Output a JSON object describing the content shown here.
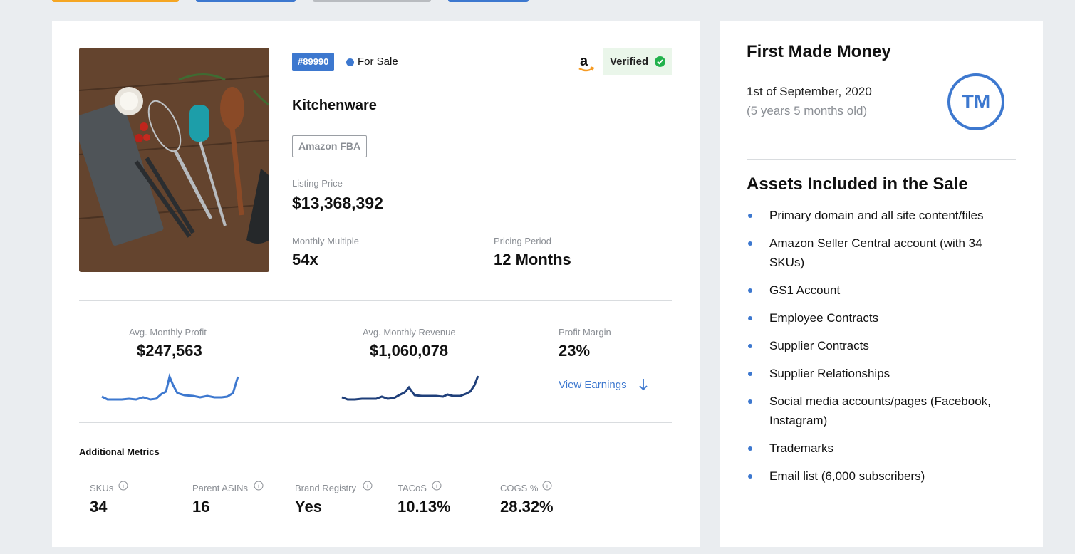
{
  "colors": {
    "accent": "#3d78cf",
    "sparkline_light": "#3d78cf",
    "sparkline_dark": "#1f3f7a",
    "verified_green": "#22b24c"
  },
  "listing": {
    "id_badge": "#89990",
    "status": "For Sale",
    "verified_label": "Verified",
    "name": "Kitchenware",
    "tag": "Amazon FBA",
    "listing_price_label": "Listing Price",
    "listing_price": "$13,368,392",
    "monthly_multiple_label": "Monthly Multiple",
    "monthly_multiple": "54x",
    "pricing_period_label": "Pricing Period",
    "pricing_period": "12 Months"
  },
  "metrics": {
    "profit_label": "Avg. Monthly Profit",
    "profit_value": "$247,563",
    "revenue_label": "Avg. Monthly Revenue",
    "revenue_value": "$1,060,078",
    "margin_label": "Profit Margin",
    "margin_value": "23%",
    "view_earnings": "View Earnings"
  },
  "additional": {
    "title": "Additional Metrics",
    "items": [
      {
        "label": "SKUs",
        "value": "34"
      },
      {
        "label": "Parent ASINs",
        "value": "16"
      },
      {
        "label": "Brand Registry",
        "value": "Yes"
      },
      {
        "label": "TACoS",
        "value": "10.13%"
      },
      {
        "label": "COGS %",
        "value": "28.32%"
      }
    ]
  },
  "sidebar": {
    "first_money_title": "First Made Money",
    "first_money_date": "1st of September, 2020",
    "first_money_age": "(5 years 5 months old)",
    "logo_text": "TM",
    "assets_title": "Assets Included in the Sale",
    "assets": [
      "Primary domain and all site content/files",
      "Amazon Seller Central account (with 34 SKUs)",
      "GS1 Account",
      "Employee Contracts",
      "Supplier Contracts",
      "Supplier Relationships",
      "Social media accounts/pages (Facebook, Instagram)",
      "Trademarks",
      "Email list (6,000 subscribers)"
    ]
  }
}
